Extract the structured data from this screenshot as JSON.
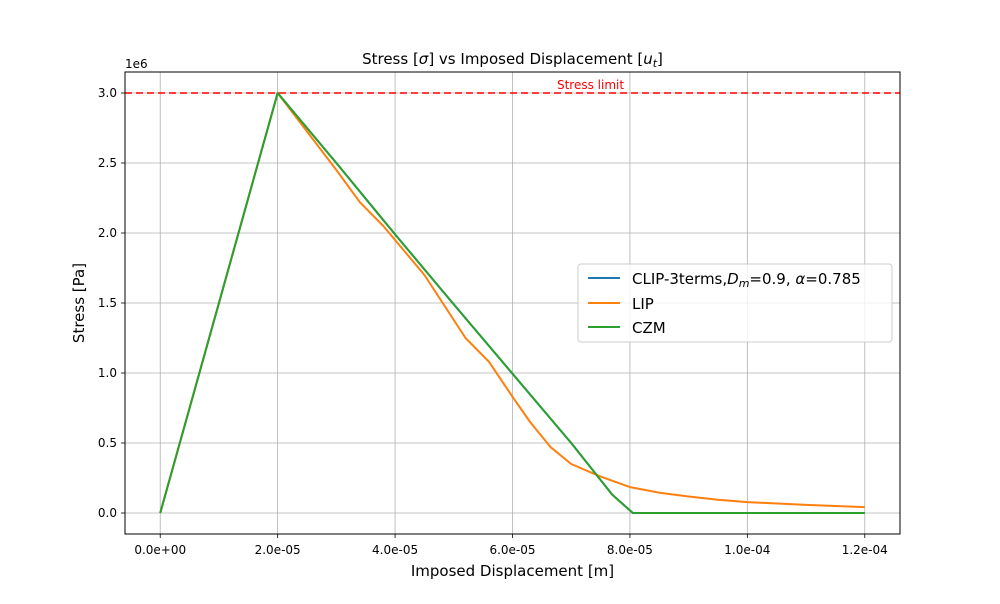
{
  "chart_data": {
    "type": "line",
    "title_parts": [
      "Stress [",
      "σ",
      "] vs Imposed Displacement [",
      "u",
      "t",
      "]"
    ],
    "xlabel": "Imposed Displacement [m]",
    "ylabel": "Stress [Pa]",
    "y_offset_label": "1e6",
    "xlim": [
      -6e-06,
      0.000126
    ],
    "ylim": [
      -150000,
      3150000
    ],
    "x_ticks": [
      0,
      2e-05,
      4e-05,
      6e-05,
      8e-05,
      0.0001,
      0.00012
    ],
    "x_tick_labels": [
      "0.0e+00",
      "2.0e-05",
      "4.0e-05",
      "6.0e-05",
      "8.0e-05",
      "1.0e-04",
      "1.2e-04"
    ],
    "y_ticks": [
      0,
      500000,
      1000000,
      1500000,
      2000000,
      2500000,
      3000000
    ],
    "y_tick_labels": [
      "0.0",
      "0.5",
      "1.0",
      "1.5",
      "2.0",
      "2.5",
      "3.0"
    ],
    "grid": true,
    "legend_position": "center-right",
    "series": [
      {
        "name_parts": [
          "CLIP-3terms,",
          "D",
          "m",
          "=0.9, ",
          "α",
          "=0.785"
        ],
        "color": "#1f77b4",
        "x": [
          0,
          2e-05,
          3e-05,
          4e-05,
          5e-05,
          6e-05,
          7e-05,
          7.7e-05,
          8.05e-05,
          9e-05,
          0.0001,
          0.00012
        ],
        "y": [
          0,
          3000000,
          2500000,
          1990000,
          1490000,
          995000,
          500000,
          130000,
          0,
          0,
          0,
          0
        ]
      },
      {
        "name_parts": [
          "LIP"
        ],
        "color": "#ff7f0e",
        "x": [
          0,
          2e-05,
          3e-05,
          3.4e-05,
          3.8e-05,
          4.2e-05,
          4.5e-05,
          5.2e-05,
          5.6e-05,
          6e-05,
          6.3e-05,
          6.65e-05,
          7e-05,
          7.5e-05,
          8e-05,
          8.5e-05,
          9e-05,
          9.5e-05,
          0.0001,
          0.00011,
          0.00012
        ],
        "y": [
          0,
          3000000,
          2450000,
          2220000,
          2050000,
          1850000,
          1700000,
          1250000,
          1080000,
          830000,
          650000,
          470000,
          350000,
          260000,
          185000,
          145000,
          118000,
          95000,
          78000,
          58000,
          42000
        ]
      },
      {
        "name_parts": [
          "CZM"
        ],
        "color": "#2ca02c",
        "x": [
          0,
          2e-05,
          3e-05,
          4e-05,
          5e-05,
          6e-05,
          7e-05,
          7.7e-05,
          8.05e-05,
          9e-05,
          0.0001,
          0.00012
        ],
        "y": [
          0,
          3000000,
          2500000,
          1990000,
          1490000,
          995000,
          500000,
          130000,
          0,
          0,
          0,
          0
        ]
      }
    ],
    "reference_line": {
      "value": 3000000,
      "label": "Stress limit",
      "color": "#ff0000",
      "style": "dashed"
    }
  }
}
